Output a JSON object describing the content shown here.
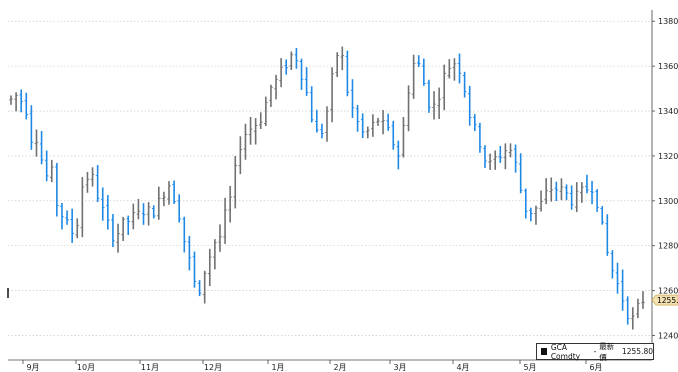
{
  "chart_data": {
    "type": "ohlc",
    "ylim": [
      1230,
      1385
    ],
    "y_ticks": [
      1240,
      1260,
      1280,
      1300,
      1320,
      1340,
      1360,
      1380
    ],
    "x_tick_labels": [
      "9月",
      "10月",
      "11月",
      "12月",
      "1月",
      "2月",
      "3月",
      "4月",
      "5月",
      "6月"
    ],
    "up_color": "#707070",
    "down_color": "#1e88e5",
    "last_price": 1255.8,
    "last_price_label": "1255.8",
    "legend": {
      "ticker": "GCA Comdty",
      "sep": "-",
      "label": "最新價",
      "value": "1255.80"
    },
    "series_path": [
      1345,
      1347,
      1345,
      1342,
      1328,
      1330,
      1320,
      1310,
      1315,
      1300,
      1295,
      1290,
      1287,
      1284,
      1305,
      1310,
      1312,
      1306,
      1298,
      1292,
      1286,
      1284,
      1288,
      1290,
      1292,
      1293,
      1294,
      1297,
      1294,
      1297,
      1300,
      1306,
      1308,
      1300,
      1293,
      1280,
      1272,
      1262,
      1256,
      1270,
      1276,
      1282,
      1284,
      1293,
      1300,
      1312,
      1325,
      1330,
      1332,
      1334,
      1336,
      1342,
      1350,
      1352,
      1356,
      1360,
      1364,
      1366,
      1360,
      1352,
      1342,
      1332,
      1328,
      1335,
      1345,
      1362,
      1368,
      1360,
      1342,
      1340,
      1332,
      1329,
      1332,
      1334,
      1337,
      1332,
      1330,
      1325,
      1320,
      1335,
      1352,
      1362,
      1360,
      1352,
      1344,
      1342,
      1348,
      1355,
      1360,
      1362,
      1360,
      1352,
      1340,
      1332,
      1328,
      1320,
      1315,
      1318,
      1320,
      1322,
      1324,
      1320,
      1310,
      1298,
      1295,
      1296,
      1297,
      1300,
      1305,
      1306,
      1305,
      1304,
      1302,
      1300,
      1302,
      1304,
      1306,
      1307,
      1298,
      1285,
      1275,
      1268,
      1262,
      1256,
      1250,
      1247,
      1252,
      1256
    ],
    "n_bars": 125
  }
}
